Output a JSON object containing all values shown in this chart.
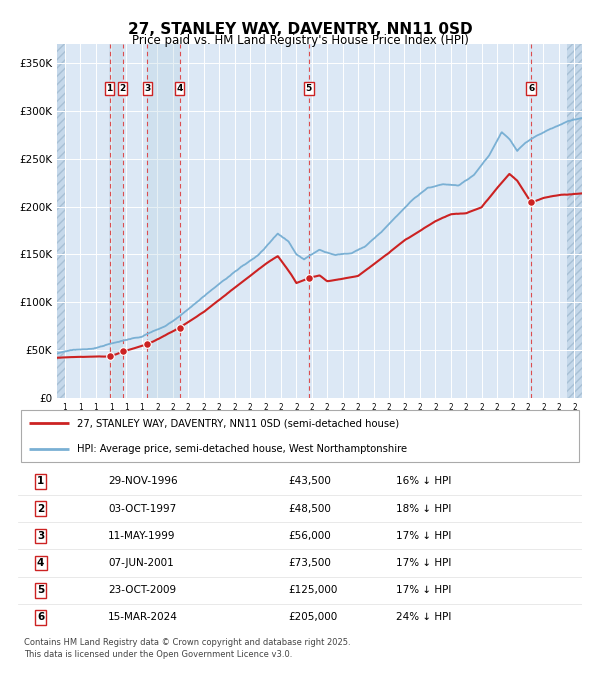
{
  "title": "27, STANLEY WAY, DAVENTRY, NN11 0SD",
  "subtitle": "Price paid vs. HM Land Registry's House Price Index (HPI)",
  "title_fontsize": 11,
  "subtitle_fontsize": 8.5,
  "ylabel_ticks": [
    "£0",
    "£50K",
    "£100K",
    "£150K",
    "£200K",
    "£250K",
    "£300K",
    "£350K"
  ],
  "ytick_vals": [
    0,
    50000,
    100000,
    150000,
    200000,
    250000,
    300000,
    350000
  ],
  "ylim": [
    0,
    370000
  ],
  "xlim_start": 1993.5,
  "xlim_end": 2027.5,
  "bg_color": "#ffffff",
  "plot_bg_color": "#dce8f5",
  "grid_color": "#ffffff",
  "hpi_color": "#7ab0d4",
  "price_color": "#cc2222",
  "transactions": [
    {
      "num": 1,
      "date": "29-NOV-1996",
      "year": 1996.91,
      "price": 43500
    },
    {
      "num": 2,
      "date": "03-OCT-1997",
      "year": 1997.75,
      "price": 48500
    },
    {
      "num": 3,
      "date": "11-MAY-1999",
      "year": 1999.36,
      "price": 56000
    },
    {
      "num": 4,
      "date": "07-JUN-2001",
      "year": 2001.44,
      "price": 73500
    },
    {
      "num": 5,
      "date": "23-OCT-2009",
      "year": 2009.81,
      "price": 125000
    },
    {
      "num": 6,
      "date": "15-MAR-2024",
      "year": 2024.21,
      "price": 205000
    }
  ],
  "hpi_anchors": [
    [
      1993.5,
      46000
    ],
    [
      1994.5,
      49000
    ],
    [
      1996.0,
      52000
    ],
    [
      1997.5,
      57000
    ],
    [
      1999.0,
      63000
    ],
    [
      2000.5,
      74000
    ],
    [
      2002.0,
      92000
    ],
    [
      2003.5,
      113000
    ],
    [
      2005.0,
      133000
    ],
    [
      2006.5,
      150000
    ],
    [
      2007.8,
      173000
    ],
    [
      2008.5,
      165000
    ],
    [
      2009.0,
      152000
    ],
    [
      2009.5,
      147000
    ],
    [
      2010.5,
      158000
    ],
    [
      2011.5,
      153000
    ],
    [
      2012.5,
      155000
    ],
    [
      2013.5,
      163000
    ],
    [
      2014.5,
      178000
    ],
    [
      2015.5,
      195000
    ],
    [
      2016.5,
      212000
    ],
    [
      2017.5,
      224000
    ],
    [
      2018.5,
      229000
    ],
    [
      2019.5,
      228000
    ],
    [
      2020.5,
      238000
    ],
    [
      2021.5,
      258000
    ],
    [
      2022.3,
      282000
    ],
    [
      2022.8,
      275000
    ],
    [
      2023.3,
      262000
    ],
    [
      2023.8,
      270000
    ],
    [
      2024.5,
      278000
    ],
    [
      2025.5,
      285000
    ],
    [
      2026.5,
      292000
    ],
    [
      2027.5,
      295000
    ]
  ],
  "price_anchors": [
    [
      1993.5,
      42000
    ],
    [
      1994.5,
      42500
    ],
    [
      1996.91,
      43500
    ],
    [
      1997.75,
      48500
    ],
    [
      1999.36,
      56000
    ],
    [
      2001.44,
      73500
    ],
    [
      2003.0,
      90000
    ],
    [
      2005.0,
      115000
    ],
    [
      2007.0,
      140000
    ],
    [
      2007.8,
      148000
    ],
    [
      2008.5,
      133000
    ],
    [
      2009.0,
      120000
    ],
    [
      2009.81,
      125000
    ],
    [
      2010.5,
      128000
    ],
    [
      2011.0,
      122000
    ],
    [
      2012.0,
      125000
    ],
    [
      2013.0,
      128000
    ],
    [
      2014.0,
      140000
    ],
    [
      2015.0,
      152000
    ],
    [
      2016.0,
      165000
    ],
    [
      2017.0,
      175000
    ],
    [
      2018.0,
      185000
    ],
    [
      2019.0,
      192000
    ],
    [
      2020.0,
      193000
    ],
    [
      2021.0,
      200000
    ],
    [
      2022.0,
      220000
    ],
    [
      2022.8,
      235000
    ],
    [
      2023.3,
      228000
    ],
    [
      2024.21,
      205000
    ],
    [
      2025.0,
      210000
    ],
    [
      2026.0,
      213000
    ],
    [
      2027.5,
      215000
    ]
  ],
  "legend_line1": "27, STANLEY WAY, DAVENTRY, NN11 0SD (semi-detached house)",
  "legend_line2": "HPI: Average price, semi-detached house, West Northamptonshire",
  "footer": "Contains HM Land Registry data © Crown copyright and database right 2025.\nThis data is licensed under the Open Government Licence v3.0.",
  "table_rows": [
    {
      "num": 1,
      "date": "29-NOV-1996",
      "price": "£43,500",
      "pct": "16% ↓ HPI"
    },
    {
      "num": 2,
      "date": "03-OCT-1997",
      "price": "£48,500",
      "pct": "18% ↓ HPI"
    },
    {
      "num": 3,
      "date": "11-MAY-1999",
      "price": "£56,000",
      "pct": "17% ↓ HPI"
    },
    {
      "num": 4,
      "date": "07-JUN-2001",
      "price": "£73,500",
      "pct": "17% ↓ HPI"
    },
    {
      "num": 5,
      "date": "23-OCT-2009",
      "price": "£125,000",
      "pct": "17% ↓ HPI"
    },
    {
      "num": 6,
      "date": "15-MAR-2024",
      "price": "£205,000",
      "pct": "24% ↓ HPI"
    }
  ]
}
